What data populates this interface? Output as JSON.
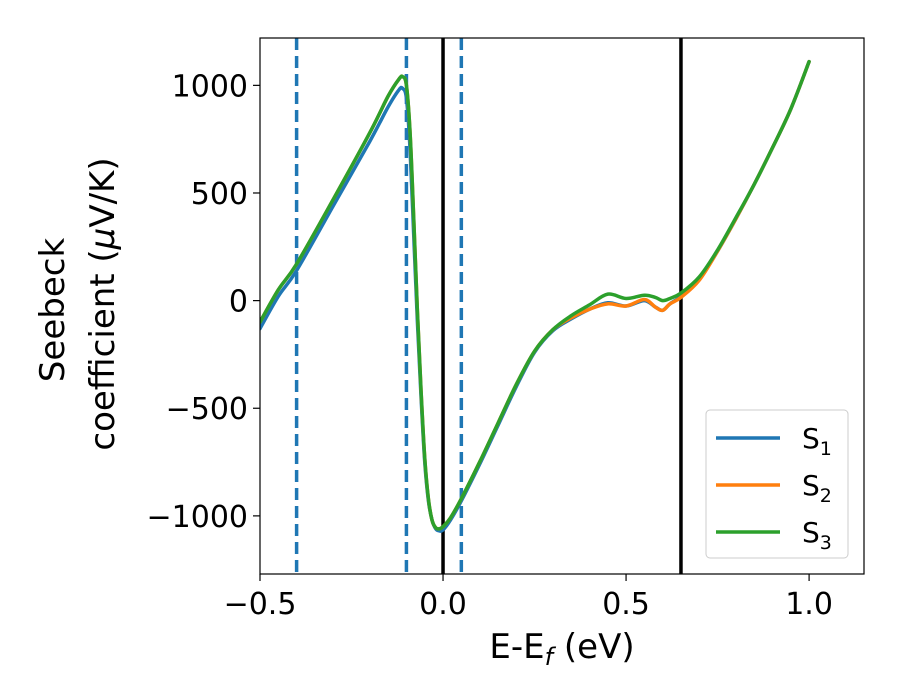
{
  "chart_data": {
    "type": "line",
    "title": "",
    "xlabel": {
      "base": "E-E",
      "sub": "f",
      "tail": " (eV)"
    },
    "ylabel": {
      "line1": "Seebeck",
      "line2_pre": "coefficient  (",
      "mu": "μ",
      "line2_post": "V/K)"
    },
    "xlim": [
      -0.5,
      1.15
    ],
    "ylim": [
      -1270,
      1220
    ],
    "xticks": [
      {
        "value": -0.5,
        "label": "−0.5"
      },
      {
        "value": 0.0,
        "label": "0.0"
      },
      {
        "value": 0.5,
        "label": "0.5"
      },
      {
        "value": 1.0,
        "label": "1.0"
      }
    ],
    "yticks": [
      {
        "value": 1000,
        "label": "1000"
      },
      {
        "value": 500,
        "label": "500"
      },
      {
        "value": 0,
        "label": "0"
      },
      {
        "value": -500,
        "label": "−500"
      },
      {
        "value": -1000,
        "label": "−1000"
      }
    ],
    "grid": false,
    "legend_position": "bottom-right",
    "vertical_lines": [
      {
        "x": -0.4,
        "style": "dashed",
        "color": "#1f77b4"
      },
      {
        "x": -0.1,
        "style": "dashed",
        "color": "#1f77b4"
      },
      {
        "x": 0.0,
        "style": "solid",
        "color": "#000000"
      },
      {
        "x": 0.05,
        "style": "dashed",
        "color": "#1f77b4"
      },
      {
        "x": 0.65,
        "style": "solid",
        "color": "#000000"
      }
    ],
    "series": [
      {
        "name": "S",
        "sub": "1",
        "color": "#1f77b4",
        "points": [
          [
            -0.5,
            -130
          ],
          [
            -0.45,
            20
          ],
          [
            -0.4,
            140
          ],
          [
            -0.3,
            440
          ],
          [
            -0.2,
            740
          ],
          [
            -0.15,
            900
          ],
          [
            -0.12,
            980
          ],
          [
            -0.11,
            985
          ],
          [
            -0.1,
            940
          ],
          [
            -0.09,
            700
          ],
          [
            -0.08,
            300
          ],
          [
            -0.07,
            -100
          ],
          [
            -0.06,
            -450
          ],
          [
            -0.05,
            -750
          ],
          [
            -0.04,
            -930
          ],
          [
            -0.03,
            -1020
          ],
          [
            -0.02,
            -1060
          ],
          [
            -0.01,
            -1070
          ],
          [
            0.0,
            -1065
          ],
          [
            0.02,
            -1020
          ],
          [
            0.05,
            -930
          ],
          [
            0.1,
            -760
          ],
          [
            0.15,
            -580
          ],
          [
            0.2,
            -400
          ],
          [
            0.25,
            -240
          ],
          [
            0.3,
            -140
          ],
          [
            0.35,
            -85
          ],
          [
            0.4,
            -40
          ],
          [
            0.45,
            -10
          ],
          [
            0.5,
            -25
          ],
          [
            0.55,
            0
          ],
          [
            0.58,
            -30
          ],
          [
            0.6,
            -45
          ],
          [
            0.62,
            -15
          ],
          [
            0.65,
            20
          ],
          [
            0.7,
            100
          ],
          [
            0.75,
            230
          ],
          [
            0.8,
            380
          ],
          [
            0.85,
            540
          ],
          [
            0.9,
            710
          ],
          [
            0.95,
            890
          ],
          [
            1.0,
            1110
          ]
        ]
      },
      {
        "name": "S",
        "sub": "2",
        "color": "#ff7f0e",
        "points": [
          [
            -0.5,
            -100
          ],
          [
            -0.45,
            50
          ],
          [
            -0.4,
            170
          ],
          [
            -0.3,
            470
          ],
          [
            -0.2,
            780
          ],
          [
            -0.15,
            950
          ],
          [
            -0.12,
            1030
          ],
          [
            -0.11,
            1040
          ],
          [
            -0.1,
            1000
          ],
          [
            -0.09,
            780
          ],
          [
            -0.08,
            380
          ],
          [
            -0.07,
            -50
          ],
          [
            -0.06,
            -420
          ],
          [
            -0.05,
            -730
          ],
          [
            -0.04,
            -920
          ],
          [
            -0.03,
            -1020
          ],
          [
            -0.02,
            -1055
          ],
          [
            -0.01,
            -1060
          ],
          [
            0.0,
            -1050
          ],
          [
            0.02,
            -1010
          ],
          [
            0.05,
            -920
          ],
          [
            0.1,
            -750
          ],
          [
            0.15,
            -570
          ],
          [
            0.2,
            -390
          ],
          [
            0.25,
            -235
          ],
          [
            0.3,
            -135
          ],
          [
            0.35,
            -80
          ],
          [
            0.4,
            -40
          ],
          [
            0.45,
            -15
          ],
          [
            0.5,
            -25
          ],
          [
            0.55,
            5
          ],
          [
            0.58,
            -30
          ],
          [
            0.6,
            -45
          ],
          [
            0.62,
            -15
          ],
          [
            0.65,
            15
          ],
          [
            0.7,
            95
          ],
          [
            0.75,
            230
          ],
          [
            0.8,
            380
          ],
          [
            0.85,
            540
          ],
          [
            0.9,
            710
          ],
          [
            0.95,
            890
          ],
          [
            1.0,
            1110
          ]
        ]
      },
      {
        "name": "S",
        "sub": "3",
        "color": "#2ca02c",
        "points": [
          [
            -0.5,
            -100
          ],
          [
            -0.45,
            50
          ],
          [
            -0.4,
            170
          ],
          [
            -0.3,
            470
          ],
          [
            -0.2,
            780
          ],
          [
            -0.15,
            950
          ],
          [
            -0.12,
            1030
          ],
          [
            -0.11,
            1040
          ],
          [
            -0.1,
            1000
          ],
          [
            -0.09,
            780
          ],
          [
            -0.08,
            380
          ],
          [
            -0.07,
            -50
          ],
          [
            -0.06,
            -420
          ],
          [
            -0.05,
            -730
          ],
          [
            -0.04,
            -920
          ],
          [
            -0.03,
            -1020
          ],
          [
            -0.02,
            -1055
          ],
          [
            -0.01,
            -1060
          ],
          [
            0.0,
            -1050
          ],
          [
            0.02,
            -1010
          ],
          [
            0.05,
            -920
          ],
          [
            0.1,
            -750
          ],
          [
            0.15,
            -570
          ],
          [
            0.2,
            -390
          ],
          [
            0.25,
            -235
          ],
          [
            0.3,
            -135
          ],
          [
            0.35,
            -70
          ],
          [
            0.4,
            -20
          ],
          [
            0.45,
            30
          ],
          [
            0.5,
            10
          ],
          [
            0.55,
            25
          ],
          [
            0.58,
            15
          ],
          [
            0.6,
            0
          ],
          [
            0.62,
            10
          ],
          [
            0.65,
            35
          ],
          [
            0.7,
            110
          ],
          [
            0.75,
            235
          ],
          [
            0.8,
            385
          ],
          [
            0.85,
            540
          ],
          [
            0.9,
            710
          ],
          [
            0.95,
            890
          ],
          [
            1.0,
            1110
          ]
        ]
      }
    ]
  }
}
